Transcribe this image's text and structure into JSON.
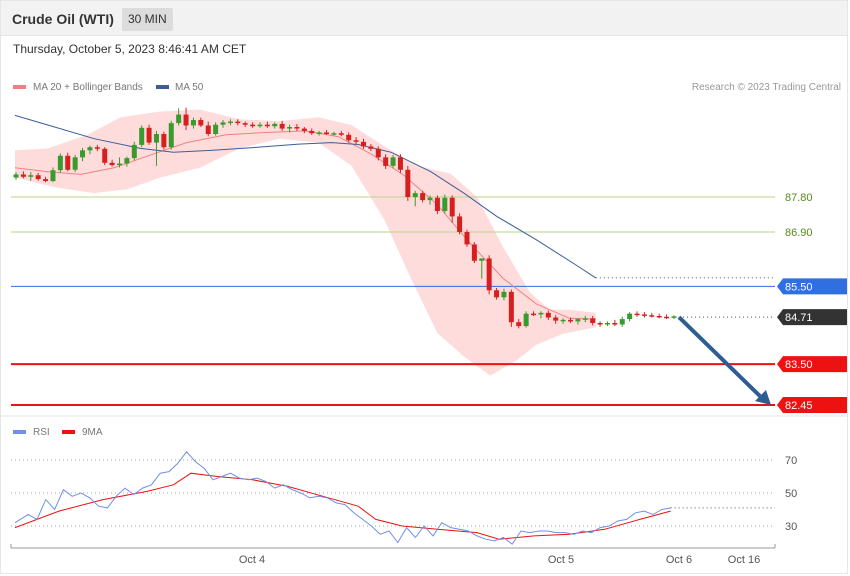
{
  "header": {
    "instrument": "Crude Oil (WTI)",
    "timeframe": "30 MIN"
  },
  "timestamp": "Thursday, October 5, 2023 8:46:41 AM CET",
  "legend": {
    "ma20": "MA 20 + Bollinger Bands",
    "ma50": "MA 50",
    "rsi": "RSI",
    "rsi_ma": "9MA"
  },
  "copyright": "Research © 2023 Trading Central",
  "colors": {
    "bull": "#3a9a2e",
    "bear": "#d6201f",
    "ma20": "#f08080",
    "band": "#ffd6d6",
    "ma50": "#3a5e9a",
    "resistance": "#2f6fe0",
    "support": "#ee1111",
    "pivot_green": "#b5d68b",
    "current": "#333333",
    "rsi": "#6f8fe8",
    "arrow": "#2e5d94"
  },
  "chart_data": [
    {
      "type": "candlestick",
      "ylim": [
        82.2,
        90.0
      ],
      "x_ticks": [
        "Oct 4",
        "Oct 5",
        "Oct 6",
        "Oct 16"
      ],
      "levels": [
        {
          "label": "87.80",
          "value": 87.8,
          "kind": "pivot"
        },
        {
          "label": "86.90",
          "value": 86.9,
          "kind": "pivot"
        },
        {
          "label": "85.50",
          "value": 85.5,
          "kind": "resistance"
        },
        {
          "label": "84.71",
          "value": 84.71,
          "kind": "current"
        },
        {
          "label": "83.50",
          "value": 83.5,
          "kind": "support"
        },
        {
          "label": "82.45",
          "value": 82.45,
          "kind": "support"
        }
      ],
      "forecast_arrow": {
        "from": 84.71,
        "to": 82.45
      },
      "candles": [
        [
          88.3,
          88.44,
          88.24,
          88.38
        ],
        [
          88.38,
          88.46,
          88.28,
          88.32
        ],
        [
          88.32,
          88.44,
          88.22,
          88.36
        ],
        [
          88.36,
          88.42,
          88.22,
          88.26
        ],
        [
          88.26,
          88.32,
          88.18,
          88.21
        ],
        [
          88.21,
          88.56,
          88.18,
          88.49
        ],
        [
          88.49,
          88.92,
          88.42,
          88.86
        ],
        [
          88.86,
          88.94,
          88.46,
          88.5
        ],
        [
          88.5,
          88.88,
          88.44,
          88.82
        ],
        [
          88.82,
          89.06,
          88.72,
          89.0
        ],
        [
          89.0,
          89.12,
          88.9,
          89.08
        ],
        [
          89.08,
          89.14,
          88.98,
          89.04
        ],
        [
          89.04,
          89.08,
          88.62,
          88.68
        ],
        [
          88.68,
          88.76,
          88.58,
          88.62
        ],
        [
          88.62,
          88.82,
          88.56,
          88.66
        ],
        [
          88.66,
          88.84,
          88.58,
          88.8
        ],
        [
          88.8,
          89.22,
          88.74,
          89.14
        ],
        [
          89.14,
          89.64,
          89.08,
          89.58
        ],
        [
          89.58,
          89.66,
          89.14,
          89.2
        ],
        [
          89.2,
          89.5,
          88.6,
          89.42
        ],
        [
          89.42,
          89.48,
          89.02,
          89.08
        ],
        [
          89.08,
          89.76,
          89.02,
          89.7
        ],
        [
          89.7,
          90.08,
          89.64,
          89.92
        ],
        [
          89.92,
          90.1,
          89.52,
          89.64
        ],
        [
          89.64,
          89.84,
          89.56,
          89.78
        ],
        [
          89.78,
          89.84,
          89.6,
          89.64
        ],
        [
          89.64,
          89.74,
          89.36,
          89.42
        ],
        [
          89.42,
          89.72,
          89.38,
          89.66
        ],
        [
          89.66,
          89.78,
          89.58,
          89.72
        ],
        [
          89.72,
          89.8,
          89.64,
          89.74
        ],
        [
          89.74,
          89.8,
          89.64,
          89.7
        ],
        [
          89.7,
          89.74,
          89.6,
          89.66
        ],
        [
          89.66,
          89.72,
          89.58,
          89.64
        ],
        [
          89.64,
          89.72,
          89.58,
          89.66
        ],
        [
          89.66,
          89.74,
          89.58,
          89.62
        ],
        [
          89.62,
          89.72,
          89.56,
          89.68
        ],
        [
          89.68,
          89.76,
          89.5,
          89.56
        ],
        [
          89.56,
          89.66,
          89.46,
          89.6
        ],
        [
          89.6,
          89.68,
          89.5,
          89.56
        ],
        [
          89.56,
          89.6,
          89.44,
          89.5
        ],
        [
          89.5,
          89.56,
          89.4,
          89.44
        ],
        [
          89.44,
          89.5,
          89.38,
          89.46
        ],
        [
          89.46,
          89.52,
          89.4,
          89.42
        ],
        [
          89.42,
          89.48,
          89.38,
          89.44
        ],
        [
          89.44,
          89.5,
          89.36,
          89.4
        ],
        [
          89.4,
          89.46,
          89.2,
          89.26
        ],
        [
          89.26,
          89.34,
          89.16,
          89.22
        ],
        [
          89.22,
          89.3,
          89.04,
          89.1
        ],
        [
          89.1,
          89.16,
          88.98,
          89.04
        ],
        [
          89.04,
          89.1,
          88.74,
          88.82
        ],
        [
          88.82,
          88.9,
          88.52,
          88.6
        ],
        [
          88.6,
          88.88,
          88.54,
          88.82
        ],
        [
          88.82,
          88.9,
          88.42,
          88.5
        ],
        [
          88.5,
          88.6,
          87.7,
          87.8
        ],
        [
          87.8,
          87.96,
          87.56,
          87.9
        ],
        [
          87.9,
          87.96,
          87.66,
          87.72
        ],
        [
          87.72,
          87.84,
          87.6,
          87.78
        ],
        [
          87.78,
          87.84,
          87.36,
          87.44
        ],
        [
          87.44,
          87.86,
          87.38,
          87.78
        ],
        [
          87.78,
          87.84,
          87.14,
          87.3
        ],
        [
          87.3,
          87.38,
          86.84,
          86.9
        ],
        [
          86.9,
          86.96,
          86.52,
          86.58
        ],
        [
          86.58,
          86.64,
          86.1,
          86.16
        ],
        [
          86.16,
          86.22,
          85.7,
          86.22
        ],
        [
          86.22,
          86.3,
          85.3,
          85.4
        ],
        [
          85.4,
          85.46,
          85.16,
          85.22
        ],
        [
          85.22,
          85.44,
          85.14,
          85.36
        ],
        [
          85.36,
          85.42,
          84.46,
          84.58
        ],
        [
          84.58,
          84.66,
          84.42,
          84.48
        ],
        [
          84.48,
          84.86,
          84.44,
          84.8
        ],
        [
          84.8,
          84.86,
          84.74,
          84.78
        ],
        [
          84.78,
          84.86,
          84.68,
          84.82
        ],
        [
          84.82,
          84.88,
          84.64,
          84.7
        ],
        [
          84.7,
          84.76,
          84.54,
          84.62
        ],
        [
          84.62,
          84.68,
          84.54,
          84.64
        ],
        [
          84.64,
          84.7,
          84.56,
          84.6
        ],
        [
          84.6,
          84.68,
          84.52,
          84.66
        ],
        [
          84.66,
          84.74,
          84.58,
          84.68
        ],
        [
          84.68,
          84.74,
          84.5,
          84.56
        ],
        [
          84.56,
          84.6,
          84.46,
          84.52
        ],
        [
          84.52,
          84.6,
          84.48,
          84.56
        ],
        [
          84.56,
          84.64,
          84.48,
          84.52
        ],
        [
          84.52,
          84.72,
          84.46,
          84.66
        ],
        [
          84.66,
          84.84,
          84.6,
          84.8
        ],
        [
          84.8,
          84.86,
          84.72,
          84.78
        ],
        [
          84.78,
          84.84,
          84.7,
          84.76
        ],
        [
          84.76,
          84.82,
          84.7,
          84.74
        ],
        [
          84.74,
          84.8,
          84.68,
          84.72
        ],
        [
          84.72,
          84.78,
          84.66,
          84.7
        ],
        [
          84.7,
          84.76,
          84.66,
          84.73
        ]
      ],
      "ma50": [
        [
          0,
          89.9
        ],
        [
          0.06,
          89.6
        ],
        [
          0.12,
          89.3
        ],
        [
          0.19,
          89.05
        ],
        [
          0.24,
          88.95
        ],
        [
          0.3,
          89.0
        ],
        [
          0.36,
          89.07
        ],
        [
          0.43,
          89.16
        ],
        [
          0.48,
          89.2
        ],
        [
          0.52,
          89.15
        ],
        [
          0.57,
          88.95
        ],
        [
          0.63,
          88.45
        ],
        [
          0.68,
          87.9
        ],
        [
          0.73,
          87.3
        ],
        [
          0.79,
          86.7
        ],
        [
          0.85,
          86.05
        ],
        [
          0.88,
          85.72
        ]
      ],
      "ma20": [
        [
          0,
          88.55
        ],
        [
          0.05,
          88.45
        ],
        [
          0.1,
          88.38
        ],
        [
          0.15,
          88.55
        ],
        [
          0.2,
          88.85
        ],
        [
          0.26,
          89.2
        ],
        [
          0.32,
          89.4
        ],
        [
          0.38,
          89.46
        ],
        [
          0.44,
          89.5
        ],
        [
          0.49,
          89.35
        ],
        [
          0.54,
          88.9
        ],
        [
          0.59,
          88.35
        ],
        [
          0.64,
          87.6
        ],
        [
          0.69,
          86.6
        ],
        [
          0.74,
          85.7
        ],
        [
          0.79,
          85.05
        ],
        [
          0.84,
          84.68
        ],
        [
          0.88,
          84.66
        ]
      ],
      "band_upper": [
        [
          0,
          89.0
        ],
        [
          0.05,
          89.05
        ],
        [
          0.11,
          89.4
        ],
        [
          0.16,
          89.85
        ],
        [
          0.22,
          90.0
        ],
        [
          0.28,
          90.05
        ],
        [
          0.34,
          89.8
        ],
        [
          0.4,
          89.75
        ],
        [
          0.46,
          89.85
        ],
        [
          0.51,
          89.65
        ],
        [
          0.56,
          89.1
        ],
        [
          0.61,
          88.6
        ],
        [
          0.66,
          88.4
        ],
        [
          0.7,
          87.8
        ],
        [
          0.74,
          86.5
        ],
        [
          0.78,
          85.35
        ],
        [
          0.81,
          84.9
        ],
        [
          0.84,
          84.9
        ],
        [
          0.88,
          84.82
        ]
      ],
      "band_lower": [
        [
          0.88,
          84.45
        ],
        [
          0.83,
          84.28
        ],
        [
          0.79,
          84.0
        ],
        [
          0.76,
          83.6
        ],
        [
          0.72,
          83.2
        ],
        [
          0.68,
          83.7
        ],
        [
          0.64,
          84.3
        ],
        [
          0.6,
          85.7
        ],
        [
          0.56,
          87.2
        ],
        [
          0.51,
          88.6
        ],
        [
          0.46,
          89.2
        ],
        [
          0.4,
          89.3
        ],
        [
          0.34,
          89.05
        ],
        [
          0.28,
          88.55
        ],
        [
          0.22,
          88.3
        ],
        [
          0.17,
          88.0
        ],
        [
          0.12,
          87.9
        ],
        [
          0.06,
          88.05
        ],
        [
          0,
          88.3
        ]
      ]
    },
    {
      "type": "line",
      "title": "RSI",
      "ylim": [
        10,
        90
      ],
      "y_ticks": [
        30,
        50,
        70
      ],
      "series": [
        {
          "name": "RSI",
          "values": [
            [
              0,
              32
            ],
            [
              0.03,
              37
            ],
            [
              0.05,
              34
            ],
            [
              0.07,
              46
            ],
            [
              0.09,
              40
            ],
            [
              0.11,
              52
            ],
            [
              0.13,
              48
            ],
            [
              0.15,
              50
            ],
            [
              0.17,
              47
            ],
            [
              0.19,
              42
            ],
            [
              0.21,
              41
            ],
            [
              0.23,
              48
            ],
            [
              0.25,
              53
            ],
            [
              0.27,
              49
            ],
            [
              0.29,
              53
            ],
            [
              0.31,
              55
            ],
            [
              0.33,
              62
            ],
            [
              0.35,
              63
            ],
            [
              0.37,
              68
            ],
            [
              0.39,
              75
            ],
            [
              0.41,
              69
            ],
            [
              0.43,
              65
            ],
            [
              0.45,
              58
            ],
            [
              0.47,
              60
            ],
            [
              0.49,
              62
            ],
            [
              0.51,
              59
            ],
            [
              0.53,
              58
            ],
            [
              0.55,
              59
            ],
            [
              0.57,
              57
            ],
            [
              0.59,
              53
            ],
            [
              0.61,
              55
            ],
            [
              0.63,
              52
            ],
            [
              0.65,
              50
            ],
            [
              0.67,
              47
            ],
            [
              0.69,
              48
            ],
            [
              0.71,
              47
            ],
            [
              0.73,
              44
            ],
            [
              0.75,
              43
            ],
            [
              0.77,
              38
            ],
            [
              0.79,
              34
            ],
            [
              0.81,
              30
            ],
            [
              0.83,
              25
            ],
            [
              0.85,
              27
            ],
            [
              0.87,
              20
            ],
            [
              0.89,
              29
            ],
            [
              0.91,
              23
            ],
            [
              0.93,
              30
            ],
            [
              0.95,
              24
            ],
            [
              0.97,
              32
            ],
            [
              0.99,
              29
            ],
            [
              1.01,
              28
            ],
            [
              1.03,
              27
            ],
            [
              1.05,
              24
            ],
            [
              1.07,
              22
            ],
            [
              1.09,
              21
            ],
            [
              1.11,
              23
            ],
            [
              1.13,
              19
            ],
            [
              1.15,
              27
            ],
            [
              1.17,
              26
            ],
            [
              1.19,
              27
            ],
            [
              1.21,
              27
            ],
            [
              1.23,
              26
            ],
            [
              1.25,
              26
            ],
            [
              1.27,
              25
            ],
            [
              1.29,
              27
            ],
            [
              1.31,
              26
            ],
            [
              1.33,
              29
            ],
            [
              1.35,
              30
            ],
            [
              1.37,
              33
            ],
            [
              1.39,
              34
            ],
            [
              1.41,
              38
            ],
            [
              1.43,
              39
            ],
            [
              1.45,
              37
            ],
            [
              1.47,
              40
            ],
            [
              1.49,
              41
            ]
          ]
        },
        {
          "name": "9MA",
          "values": [
            [
              0,
              29
            ],
            [
              0.1,
              39
            ],
            [
              0.2,
              46
            ],
            [
              0.3,
              51
            ],
            [
              0.36,
              55
            ],
            [
              0.4,
              62
            ],
            [
              0.46,
              60
            ],
            [
              0.54,
              58
            ],
            [
              0.62,
              54
            ],
            [
              0.7,
              48
            ],
            [
              0.78,
              42
            ],
            [
              0.82,
              34
            ],
            [
              0.88,
              30
            ],
            [
              0.96,
              28
            ],
            [
              1.05,
              26
            ],
            [
              1.1,
              22
            ],
            [
              1.18,
              24
            ],
            [
              1.26,
              25
            ],
            [
              1.34,
              28
            ],
            [
              1.42,
              34
            ],
            [
              1.49,
              39
            ]
          ]
        }
      ]
    }
  ]
}
